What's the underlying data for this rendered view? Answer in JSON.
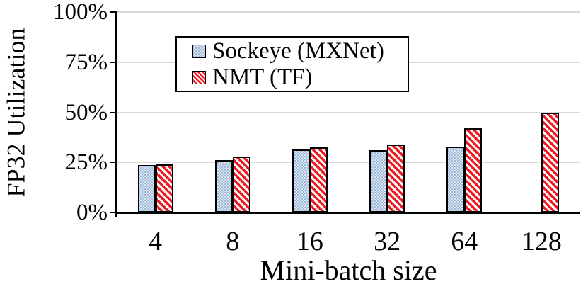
{
  "chart_data": {
    "type": "bar",
    "title": "",
    "xlabel": "Mini-batch size",
    "ylabel": "FP32 Utilization",
    "categories": [
      "4",
      "8",
      "16",
      "32",
      "64",
      "128"
    ],
    "series": [
      {
        "name": "Sockeye (MXNet)",
        "swatch": "blue-dotted-square",
        "values": [
          23.5,
          26,
          31.5,
          31,
          33,
          null
        ]
      },
      {
        "name": "NMT (TF)",
        "swatch": "red-diagonal-hatch-square",
        "values": [
          24,
          28,
          32.5,
          34,
          42,
          50
        ]
      }
    ],
    "y_ticks": [
      {
        "value": 0,
        "label": "0%"
      },
      {
        "value": 25,
        "label": "25%"
      },
      {
        "value": 50,
        "label": "50%"
      },
      {
        "value": 75,
        "label": "75%"
      },
      {
        "value": 100,
        "label": "100%"
      }
    ],
    "ylim": [
      0,
      100
    ],
    "grid": true,
    "legend_position": "inside-top-left-of-center"
  },
  "style": {
    "grid_color": "#d9d9d9",
    "axis_color": "#000000",
    "text_color": "#000000",
    "sockeye_fill": "#dbe5f1",
    "sockeye_dot_color": "#8aabcf",
    "nmt_fill": "#ffffff",
    "nmt_stripe_color": "#ee1c25",
    "bar_border_color": "#000000"
  }
}
